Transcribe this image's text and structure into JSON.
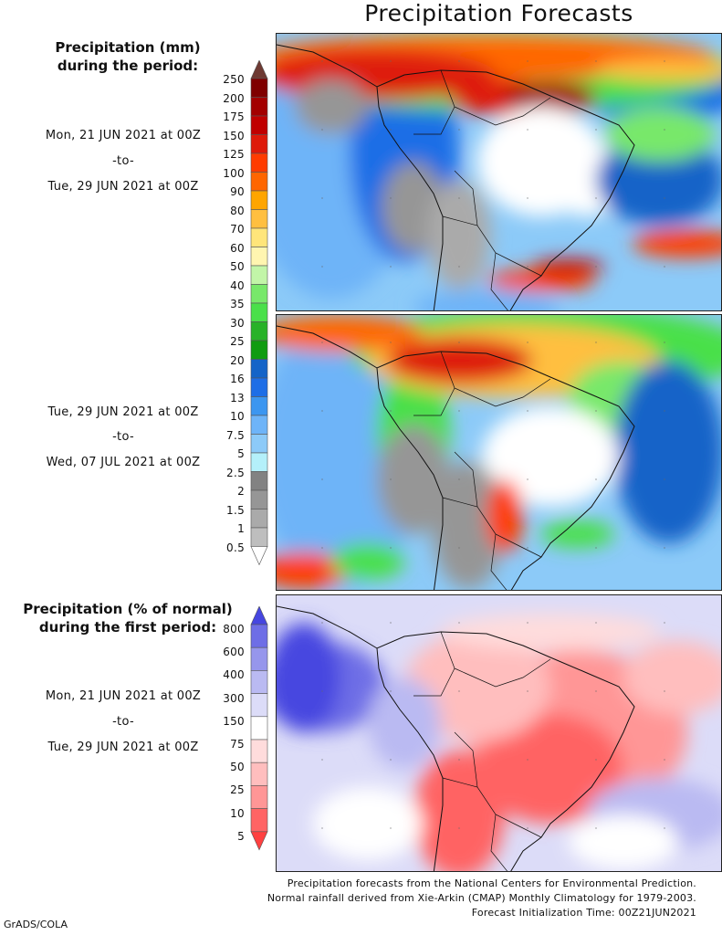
{
  "title": "Precipitation Forecasts",
  "chart_data": [
    {
      "type": "heatmap",
      "title": "Precipitation (mm) during the period:",
      "period": {
        "from": "Mon, 21 JUN 2021 at 00Z",
        "sep": "-to-",
        "to": "Tue, 29 JUN 2021 at 00Z"
      },
      "region": "South America",
      "features": [
        "heavy rain (100-250 mm) over northern South America / Caribbean",
        "dry (<0.5 mm) over central Brazil",
        "heavy band (50-150 mm) over southern Brazil/Uruguay into Atlantic"
      ]
    },
    {
      "type": "heatmap",
      "title": "Precipitation (mm) during the period:",
      "period": {
        "from": "Tue, 29 JUN 2021 at 00Z",
        "sep": "-to-",
        "to": "Wed, 07 JUL 2021 at 00Z"
      },
      "region": "South America",
      "features": [
        "heavy rain (100-250 mm) over Colombia/Venezuela",
        "dry (<0.5 mm) over central Brazil",
        "band (50-125 mm) over Bolivia/Paraguay"
      ]
    },
    {
      "type": "heatmap",
      "title": "Precipitation (% of normal) during the first period:",
      "period": {
        "from": "Mon, 21 JUN 2021 at 00Z",
        "sep": "-to-",
        "to": "Tue, 29 JUN 2021 at 00Z"
      },
      "region": "South America",
      "features": [
        "well below normal (<10%) over central Brazil and Argentina",
        "well above normal (400-800%) over eastern Pacific"
      ]
    }
  ],
  "colorbar_mm": {
    "labels": [
      "250",
      "200",
      "175",
      "150",
      "125",
      "100",
      "90",
      "80",
      "70",
      "60",
      "50",
      "40",
      "35",
      "30",
      "25",
      "20",
      "16",
      "13",
      "10",
      "7.5",
      "5",
      "2.5",
      "2",
      "1.5",
      "1",
      "0.5"
    ],
    "colors": [
      "#6e3a33",
      "#7f0000",
      "#a30000",
      "#c00000",
      "#de1a0a",
      "#ff3c00",
      "#ff6600",
      "#ffa500",
      "#ffbf40",
      "#ffe57a",
      "#fff5b0",
      "#c2f5a8",
      "#78e86a",
      "#4ae04a",
      "#28b228",
      "#109c10",
      "#1464c8",
      "#1e6ee6",
      "#3c96f0",
      "#6eb4f8",
      "#8ccaf8",
      "#b4f0fa",
      "#828282",
      "#969696",
      "#aaaaaa",
      "#bebebe",
      "#ffffff"
    ]
  },
  "colorbar_pct": {
    "labels": [
      "800",
      "600",
      "400",
      "300",
      "150",
      "75",
      "50",
      "25",
      "10",
      "5"
    ],
    "colors": [
      "#4646e0",
      "#6e6ee6",
      "#9696ec",
      "#babaf2",
      "#dcdcf8",
      "#ffffff",
      "#ffdcdc",
      "#ffbebe",
      "#ff9696",
      "#ff6464",
      "#ff4040"
    ]
  },
  "labels": {
    "mm_title_1": "Precipitation (mm)",
    "mm_title_2": "during the period:",
    "pct_title_1": "Precipitation (% of normal)",
    "pct_title_2": "during the first period:"
  },
  "footer": {
    "line1": "Precipitation forecasts from the National Centers for Environmental Prediction.",
    "line2": "Normal rainfall derived from Xie-Arkin (CMAP) Monthly Climatology for 1979-2003.",
    "line3": "Forecast Initialization Time: 00Z21JUN2021"
  },
  "credit": "GrADS/COLA"
}
